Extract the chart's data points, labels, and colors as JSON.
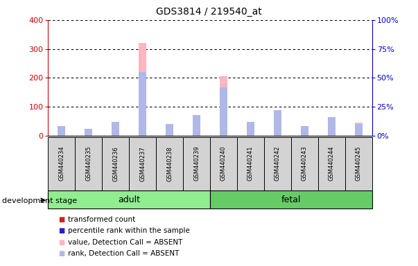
{
  "title": "GDS3814 / 219540_at",
  "samples": [
    "GSM440234",
    "GSM440235",
    "GSM440236",
    "GSM440237",
    "GSM440238",
    "GSM440239",
    "GSM440240",
    "GSM440241",
    "GSM440242",
    "GSM440243",
    "GSM440244",
    "GSM440245"
  ],
  "transformed_count": [
    22,
    18,
    45,
    320,
    30,
    60,
    205,
    35,
    65,
    18,
    58,
    45
  ],
  "percentile_rank": [
    8,
    6,
    12,
    55,
    10,
    18,
    42,
    12,
    22,
    8,
    16,
    10
  ],
  "detection_call": [
    "ABSENT",
    "ABSENT",
    "ABSENT",
    "ABSENT",
    "ABSENT",
    "ABSENT",
    "ABSENT",
    "ABSENT",
    "ABSENT",
    "ABSENT",
    "ABSENT",
    "ABSENT"
  ],
  "groups": [
    {
      "label": "adult",
      "start": 0,
      "end": 5,
      "color": "#90ee90"
    },
    {
      "label": "fetal",
      "start": 6,
      "end": 11,
      "color": "#66cc66"
    }
  ],
  "ylim_left": [
    0,
    400
  ],
  "ylim_right": [
    0,
    100
  ],
  "yticks_left": [
    0,
    100,
    200,
    300,
    400
  ],
  "yticks_right": [
    0,
    25,
    50,
    75,
    100
  ],
  "bar_width": 0.55,
  "value_bar_color": "#ffb6c1",
  "rank_bar_color": "#b0b8e8",
  "value_present_color": "#cc2222",
  "rank_present_color": "#2222cc",
  "background_color": "#ffffff",
  "ylabel_left_color": "#cc0000",
  "ylabel_right_color": "#0000cc"
}
